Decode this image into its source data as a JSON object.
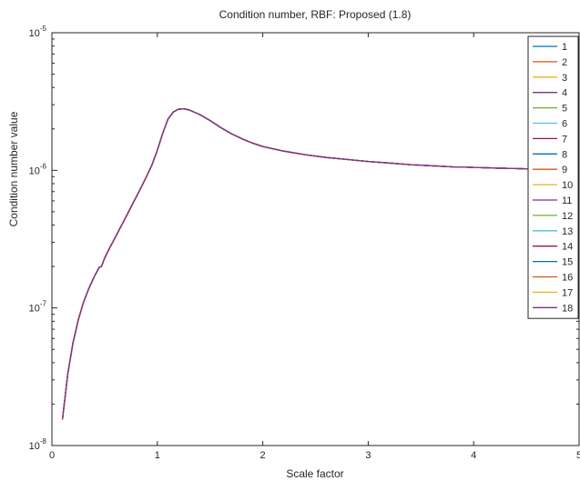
{
  "chart_data": {
    "type": "line",
    "title": "Condition number, RBF: Proposed (1.8)",
    "xlabel": "Scale factor",
    "ylabel": "Condition number value",
    "xlim": [
      0,
      5
    ],
    "ylim": [
      1e-08,
      1e-05
    ],
    "yscale": "log",
    "xticks": [
      0,
      1,
      2,
      3,
      4,
      5
    ],
    "xtick_labels": [
      "0",
      "1",
      "2",
      "3",
      "4",
      "5"
    ],
    "yticks": [
      1e-08,
      1e-07,
      1e-06,
      1e-05
    ],
    "ytick_labels": [
      {
        "base": "10",
        "exp": "-8"
      },
      {
        "base": "10",
        "exp": "-7"
      },
      {
        "base": "10",
        "exp": "-6"
      },
      {
        "base": "10",
        "exp": "-5"
      }
    ],
    "grid": false,
    "legend_position": "top-right",
    "x": [
      0.1,
      0.15,
      0.2,
      0.25,
      0.3,
      0.35,
      0.4,
      0.45,
      0.47,
      0.5,
      0.55,
      0.6,
      0.65,
      0.7,
      0.75,
      0.8,
      0.85,
      0.9,
      0.95,
      1.0,
      1.05,
      1.1,
      1.15,
      1.2,
      1.25,
      1.3,
      1.35,
      1.4,
      1.5,
      1.6,
      1.7,
      1.8,
      1.9,
      2.0,
      2.2,
      2.4,
      2.6,
      2.8,
      3.0,
      3.2,
      3.4,
      3.6,
      3.8,
      4.0,
      4.2,
      4.4,
      4.6,
      4.8,
      5.0
    ],
    "series": [
      {
        "name": "1",
        "color": "#0072bd",
        "values": [
          1.55e-08,
          3.3e-08,
          5.6e-08,
          8.2e-08,
          1.1e-07,
          1.38e-07,
          1.68e-07,
          1.98e-07,
          2e-07,
          2.3e-07,
          2.75e-07,
          3.25e-07,
          3.85e-07,
          4.55e-07,
          5.4e-07,
          6.4e-07,
          7.6e-07,
          9.1e-07,
          1.1e-06,
          1.4e-06,
          1.85e-06,
          2.35e-06,
          2.65e-06,
          2.78e-06,
          2.8e-06,
          2.75e-06,
          2.65e-06,
          2.55e-06,
          2.3e-06,
          2.05e-06,
          1.85e-06,
          1.7e-06,
          1.58e-06,
          1.49e-06,
          1.38e-06,
          1.3e-06,
          1.24e-06,
          1.2e-06,
          1.16e-06,
          1.13e-06,
          1.1e-06,
          1.08e-06,
          1.06e-06,
          1.05e-06,
          1.04e-06,
          1.03e-06,
          1.02e-06,
          1.01e-06,
          1e-06
        ]
      },
      {
        "name": "2",
        "color": "#d95319"
      },
      {
        "name": "3",
        "color": "#edb120"
      },
      {
        "name": "4",
        "color": "#7e2f8e"
      },
      {
        "name": "5",
        "color": "#77ac30"
      },
      {
        "name": "6",
        "color": "#4dbeee"
      },
      {
        "name": "7",
        "color": "#a2142f"
      },
      {
        "name": "8",
        "color": "#0072bd"
      },
      {
        "name": "9",
        "color": "#d95319"
      },
      {
        "name": "10",
        "color": "#edb120"
      },
      {
        "name": "11",
        "color": "#7e2f8e"
      },
      {
        "name": "12",
        "color": "#77ac30"
      },
      {
        "name": "13",
        "color": "#4dbeee"
      },
      {
        "name": "14",
        "color": "#a2142f"
      },
      {
        "name": "15",
        "color": "#0072bd"
      },
      {
        "name": "16",
        "color": "#d95319"
      },
      {
        "name": "17",
        "color": "#edb120"
      },
      {
        "name": "18",
        "color": "#7e2f8e"
      }
    ]
  }
}
